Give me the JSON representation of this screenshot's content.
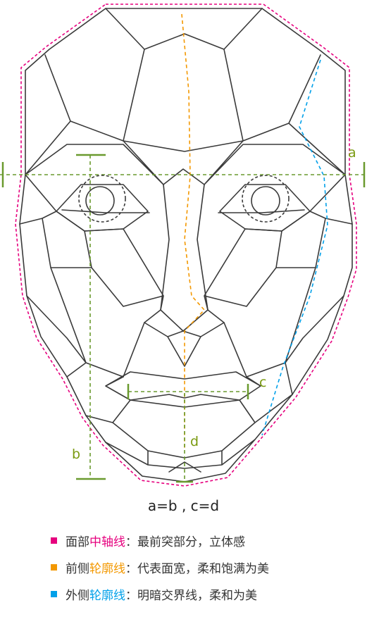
{
  "labels": {
    "a": "a",
    "b": "b",
    "c": "c",
    "d": "d"
  },
  "formula": "a=b , c=d",
  "legend": [
    {
      "prefix": "面部",
      "highlight": "中轴线",
      "suffix": "：最前突部分，立体感",
      "color": "#e6007e"
    },
    {
      "prefix": "前侧",
      "highlight": "轮廓线",
      "suffix": "：代表面宽，柔和饱满为美",
      "color": "#f39800"
    },
    {
      "prefix": "外侧",
      "highlight": "轮廓线",
      "suffix": "：明暗交界线，柔和为美",
      "color": "#00a0e9"
    }
  ],
  "colors": {
    "line": "#3a3a3a",
    "measure": "#6a9a2e",
    "midline": "#e6007e",
    "front_contour": "#f39800",
    "outer_contour": "#00a0e9",
    "label": "#7a9a10"
  }
}
